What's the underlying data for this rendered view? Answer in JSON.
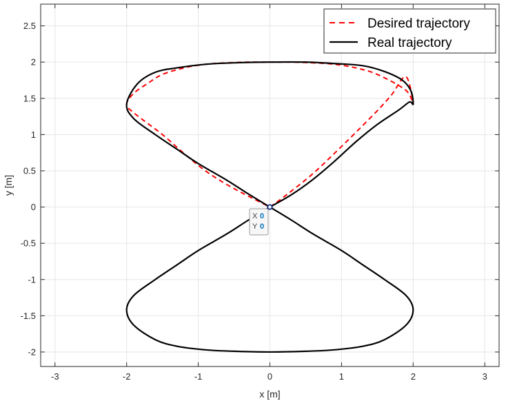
{
  "chart_data": {
    "type": "line",
    "title": "",
    "xlabel": "x [m]",
    "ylabel": "y [m]",
    "xlim": [
      -3.2,
      3.2
    ],
    "ylim": [
      -2.2,
      2.8
    ],
    "xticks": [
      -3,
      -2,
      -1,
      0,
      1,
      2,
      3
    ],
    "yticks": [
      -2,
      -1.5,
      -1,
      -0.5,
      0,
      0.5,
      1,
      1.5,
      2,
      2.5
    ],
    "grid": true,
    "legend_position": "top-right",
    "series": [
      {
        "name": "Desired trajectory",
        "style": "dashed",
        "color": "#ff0000",
        "x": [
          0,
          0.1,
          0.3,
          0.6,
          0.9,
          1.2,
          1.5,
          1.7,
          1.9,
          2.0,
          1.9,
          1.5,
          1.2,
          0.9,
          0.6,
          0.3,
          0,
          -0.3,
          -0.6,
          -0.9,
          -1.2,
          -1.5,
          -1.7,
          -1.9,
          -2.0,
          -1.9,
          -1.5,
          -1.2,
          -0.9,
          -0.6,
          -0.3,
          0
        ],
        "y": [
          0,
          0.07,
          0.22,
          0.46,
          0.74,
          1.03,
          1.33,
          1.55,
          1.8,
          1.42,
          1.61,
          1.83,
          1.92,
          1.97,
          1.99,
          2.0,
          2.0,
          2.0,
          1.99,
          1.97,
          1.92,
          1.83,
          1.71,
          1.57,
          1.42,
          1.3,
          1.0,
          0.74,
          0.5,
          0.31,
          0.15,
          0
        ]
      },
      {
        "name": "Real trajectory",
        "style": "solid",
        "color": "#000000",
        "x": [
          0,
          0.3,
          0.6,
          0.9,
          1.2,
          1.5,
          1.8,
          1.95,
          2.0,
          1.97,
          1.85,
          1.6,
          1.3,
          0.9,
          0.5,
          0,
          -0.5,
          -0.9,
          -1.3,
          -1.6,
          -1.85,
          -2.0,
          -1.9,
          -1.6,
          -1.3,
          -1.0,
          -0.6,
          -0.3,
          0,
          0.3,
          0.6,
          1.0,
          1.3,
          1.6,
          1.9,
          2.0,
          1.9,
          1.6,
          1.3,
          0.9,
          0.5,
          0,
          -0.5,
          -0.9,
          -1.3,
          -1.6,
          -1.9,
          -2.0,
          -1.9,
          -1.6,
          -1.3,
          -1.0,
          -0.6,
          -0.3,
          0
        ],
        "y": [
          0,
          0.17,
          0.38,
          0.63,
          0.9,
          1.14,
          1.34,
          1.45,
          1.42,
          1.6,
          1.75,
          1.87,
          1.95,
          1.98,
          2.0,
          2.0,
          1.99,
          1.97,
          1.92,
          1.86,
          1.7,
          1.42,
          1.22,
          1.0,
          0.8,
          0.6,
          0.37,
          0.18,
          0,
          -0.18,
          -0.37,
          -0.6,
          -0.8,
          -1.0,
          -1.22,
          -1.42,
          -1.63,
          -1.83,
          -1.92,
          -1.97,
          -1.99,
          -2.0,
          -1.99,
          -1.97,
          -1.92,
          -1.83,
          -1.63,
          -1.42,
          -1.22,
          -1.0,
          -0.8,
          -0.6,
          -0.37,
          -0.18,
          0
        ]
      }
    ],
    "datatip": {
      "x_label": "X",
      "x_value": "0",
      "y_label": "Y",
      "y_value": "0",
      "point_x": 0,
      "point_y": 0
    }
  }
}
